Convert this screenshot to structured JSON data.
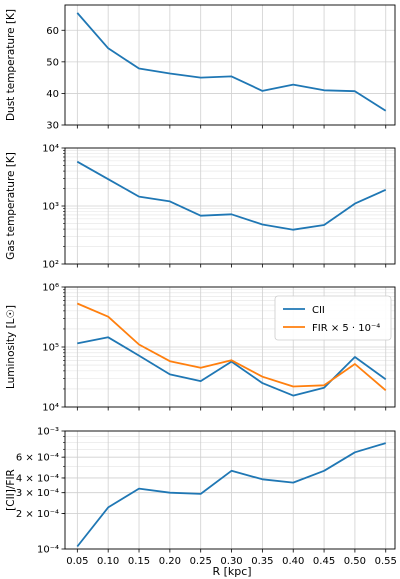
{
  "chart_data": [
    {
      "type": "line",
      "ylabel": "Dust temperature [K]",
      "yscale": "linear",
      "ylim": [
        30,
        68
      ],
      "yticks": [
        30,
        40,
        50,
        60
      ],
      "ytick_labels": [
        "30",
        "40",
        "50",
        "60"
      ],
      "grid": true,
      "series": [
        {
          "name": "",
          "color": "#1f77b4",
          "values": [
            65.5,
            54.3,
            47.9,
            46.3,
            45.0,
            45.4,
            40.8,
            42.8,
            41.0,
            40.7,
            34.5
          ]
        }
      ]
    },
    {
      "type": "line",
      "ylabel": "Gas temperature [K]",
      "yscale": "log",
      "ylim": [
        100,
        10000
      ],
      "yticks": [
        100,
        1000,
        10000
      ],
      "ytick_labels": [
        "10²",
        "10³",
        "10⁴"
      ],
      "grid": true,
      "series": [
        {
          "name": "",
          "color": "#1f77b4",
          "values": [
            5800,
            2900,
            1450,
            1200,
            680,
            720,
            480,
            390,
            470,
            1100,
            1900
          ]
        }
      ]
    },
    {
      "type": "line",
      "ylabel": "Luminosity [L☉]",
      "yscale": "log",
      "ylim": [
        10000,
        1000000
      ],
      "yticks": [
        10000,
        100000,
        1000000
      ],
      "ytick_labels": [
        "10⁴",
        "10⁵",
        "10⁶"
      ],
      "grid": true,
      "legend": "upper-right",
      "series": [
        {
          "name": "CII",
          "color": "#1f77b4",
          "values": [
            115000,
            145000,
            72000,
            35000,
            27000,
            57000,
            25000,
            15500,
            21000,
            68000,
            29000
          ]
        },
        {
          "name": "FIR × 5 · 10⁻⁴",
          "color": "#ff7f0e",
          "values": [
            530000,
            320000,
            110000,
            58000,
            45000,
            60000,
            32000,
            22000,
            23000,
            52000,
            19000
          ]
        }
      ]
    },
    {
      "type": "line",
      "ylabel": "[CII]/FIR",
      "xlabel": "R [kpc]",
      "yscale": "log",
      "ylim": [
        0.0001,
        0.001
      ],
      "yticks": [
        0.0001,
        0.0002,
        0.0003,
        0.0004,
        0.0006,
        0.001
      ],
      "ytick_labels": [
        "10⁻⁴",
        "2 × 10⁻⁴",
        "3 × 10⁻⁴",
        "4 × 10⁻⁴",
        "6 × 10⁻⁴",
        "10⁻³"
      ],
      "grid": true,
      "series": [
        {
          "name": "",
          "color": "#1f77b4",
          "values": [
            0.000105,
            0.000225,
            0.000325,
            0.0003,
            0.000293,
            0.00046,
            0.00039,
            0.000365,
            0.00046,
            0.00066,
            0.00079
          ]
        }
      ]
    }
  ],
  "x": [
    0.05,
    0.1,
    0.15,
    0.2,
    0.25,
    0.3,
    0.35,
    0.4,
    0.45,
    0.5,
    0.55
  ],
  "xtick_labels": [
    "0.05",
    "0.10",
    "0.15",
    "0.20",
    "0.25",
    "0.30",
    "0.35",
    "0.40",
    "0.45",
    "0.50",
    "0.55"
  ],
  "xlim": [
    0.03,
    0.565
  ]
}
